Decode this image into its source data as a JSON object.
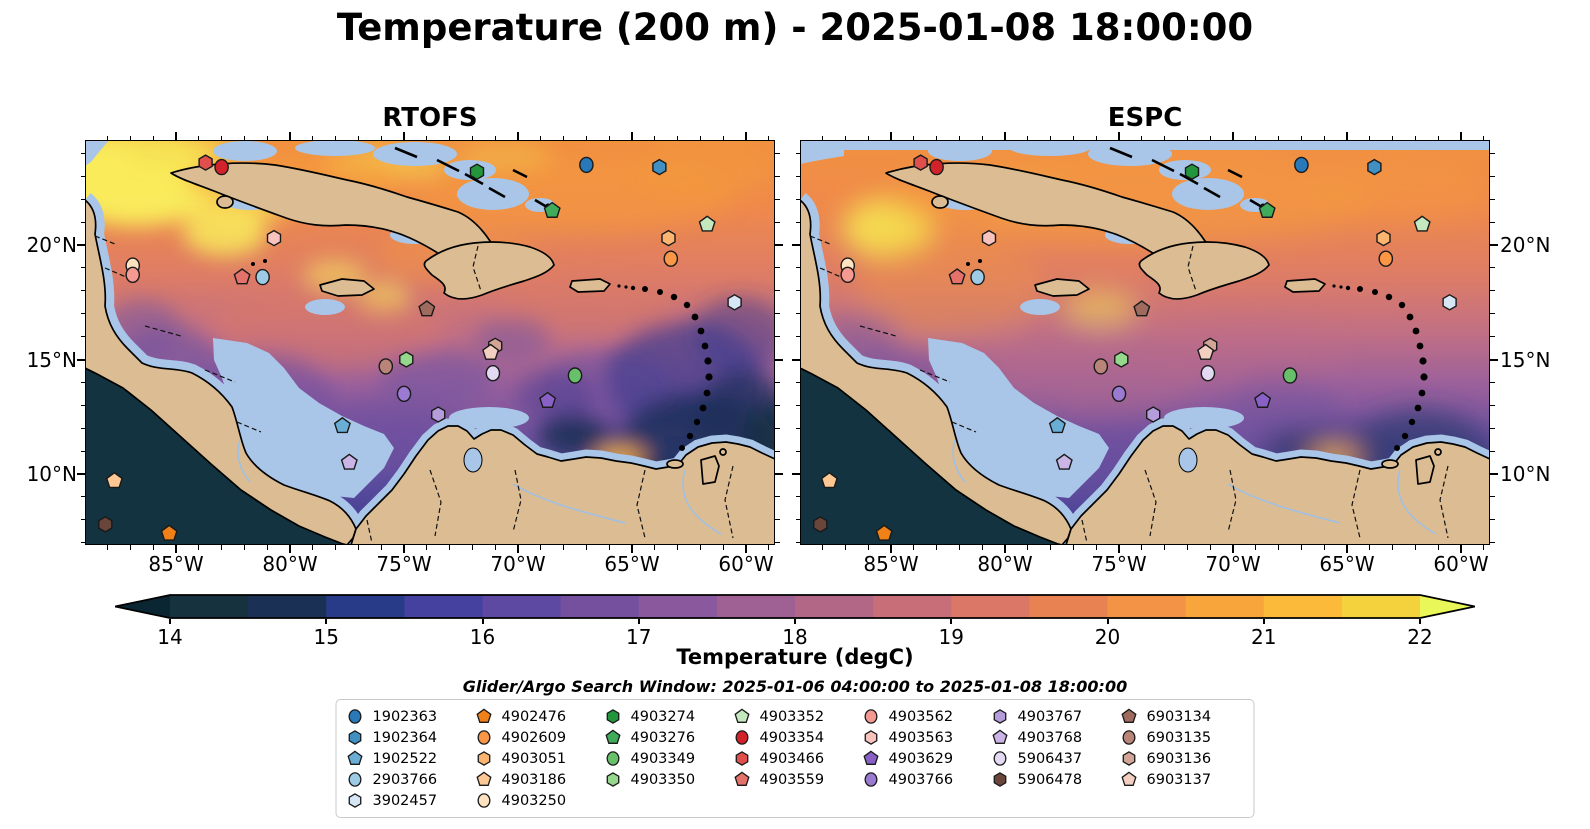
{
  "title": "Temperature (200 m) - 2025-01-08 18:00:00",
  "panels": [
    {
      "id": "rtofs",
      "title": "RTOFS",
      "lat_labels": "left"
    },
    {
      "id": "espc",
      "title": "ESPC",
      "lat_labels": "right"
    }
  ],
  "axes": {
    "lon_tick_labels": [
      "85°W",
      "80°W",
      "75°W",
      "70°W",
      "65°W",
      "60°W"
    ],
    "lat_tick_labels": [
      "20°N",
      "15°N",
      "10°N"
    ]
  },
  "colorbar": {
    "label": "Temperature (degC)",
    "tick_labels": [
      "14",
      "15",
      "16",
      "17",
      "18",
      "19",
      "20",
      "21",
      "22"
    ],
    "segment_colors": [
      "#16323f",
      "#1b3055",
      "#273b89",
      "#45419f",
      "#5d48a2",
      "#74509f",
      "#8a589c",
      "#9f6093",
      "#b36787",
      "#c76e79",
      "#da7766",
      "#e98253",
      "#f29345",
      "#f8a63c",
      "#fbba39",
      "#f4d23e"
    ],
    "under_color": "#0b2633",
    "over_color": "#e9f858"
  },
  "subtitle": "Glider/Argo Search Window: 2025-01-06 04:00:00 to 2025-01-08 18:00:00",
  "legend": {
    "columns": [
      [
        "1902363",
        "1902364",
        "1902522",
        "2903766",
        "3902457"
      ],
      [
        "4902476",
        "4902609",
        "4903051",
        "4903186",
        "4903250"
      ],
      [
        "4903274",
        "4903276",
        "4903349",
        "4903350"
      ],
      [
        "4903352",
        "4903354",
        "4903466",
        "4903559"
      ],
      [
        "4903562",
        "4903563",
        "4903629",
        "4903766"
      ],
      [
        "4903767",
        "4903768",
        "5906437",
        "5906478"
      ],
      [
        "6903134",
        "6903135",
        "6903136",
        "6903137"
      ]
    ]
  },
  "chart_data": {
    "type": "heatmap",
    "title": "Temperature (200 m) - 2025-01-08 18:00:00",
    "variable": "Temperature (degC)",
    "depth_m": 200,
    "valid_time": "2025-01-08 18:00:00",
    "models": [
      "RTOFS",
      "ESPC"
    ],
    "colorbar_range_degc": [
      14,
      22
    ],
    "colorbar_extend": "both",
    "lon_axis": {
      "ticks": [
        "85°W",
        "80°W",
        "75°W",
        "70°W",
        "65°W",
        "60°W"
      ],
      "range_deg_w": [
        88.9,
        58.7
      ]
    },
    "lat_axis": {
      "ticks": [
        "20°N",
        "15°N",
        "10°N"
      ],
      "range_deg_n": [
        6.9,
        24.6
      ]
    },
    "search_window": {
      "start": "2025-01-06 04:00:00",
      "end": "2025-01-08 18:00:00"
    },
    "platforms": [
      {
        "id": "1902363",
        "shape": "circle",
        "color": "#2979b9",
        "lon_w": 67.0,
        "lat_n": 23.5
      },
      {
        "id": "1902364",
        "shape": "hexagon",
        "color": "#4090c4",
        "lon_w": 63.8,
        "lat_n": 23.4
      },
      {
        "id": "1902522",
        "shape": "pentagon",
        "color": "#6aaed6",
        "lon_w": 77.7,
        "lat_n": 12.1
      },
      {
        "id": "2903766",
        "shape": "circle",
        "color": "#9dcbe6",
        "lon_w": 81.2,
        "lat_n": 18.6
      },
      {
        "id": "3902457",
        "shape": "hexagon",
        "color": "#d6e6f4",
        "lon_w": 60.5,
        "lat_n": 17.5
      },
      {
        "id": "4902476",
        "shape": "pentagon",
        "color": "#f08118",
        "lon_w": 85.3,
        "lat_n": 7.4
      },
      {
        "id": "4902609",
        "shape": "circle",
        "color": "#f99746",
        "lon_w": 63.3,
        "lat_n": 19.4
      },
      {
        "id": "4903051",
        "shape": "hexagon",
        "color": "#fcb571",
        "lon_w": 63.4,
        "lat_n": 20.3
      },
      {
        "id": "4903186",
        "shape": "pentagon",
        "color": "#fdc894",
        "lon_w": 87.7,
        "lat_n": 9.7
      },
      {
        "id": "4903250",
        "shape": "circle",
        "color": "#fde3c0",
        "lon_w": 86.9,
        "lat_n": 19.1
      },
      {
        "id": "4903274",
        "shape": "hexagon",
        "color": "#23953c",
        "lon_w": 71.8,
        "lat_n": 23.2
      },
      {
        "id": "4903276",
        "shape": "pentagon",
        "color": "#41ab5c",
        "lon_w": 68.5,
        "lat_n": 21.5
      },
      {
        "id": "4903349",
        "shape": "circle",
        "color": "#69c06b",
        "lon_w": 67.5,
        "lat_n": 14.3
      },
      {
        "id": "4903350",
        "shape": "hexagon",
        "color": "#95d78c",
        "lon_w": 74.9,
        "lat_n": 15.0
      },
      {
        "id": "4903352",
        "shape": "pentagon",
        "color": "#c4e9bf",
        "lon_w": 61.7,
        "lat_n": 20.9
      },
      {
        "id": "4903354",
        "shape": "circle",
        "color": "#d2232a",
        "lon_w": 83.0,
        "lat_n": 23.4
      },
      {
        "id": "4903466",
        "shape": "hexagon",
        "color": "#e14f4c",
        "lon_w": 83.7,
        "lat_n": 23.6
      },
      {
        "id": "4903559",
        "shape": "pentagon",
        "color": "#e4726a",
        "lon_w": 82.1,
        "lat_n": 18.6
      },
      {
        "id": "4903562",
        "shape": "circle",
        "color": "#f49a92",
        "lon_w": 86.9,
        "lat_n": 18.7
      },
      {
        "id": "4903563",
        "shape": "hexagon",
        "color": "#f9c3bd",
        "lon_w": 80.7,
        "lat_n": 20.3
      },
      {
        "id": "4903629",
        "shape": "pentagon",
        "color": "#8860c6",
        "lon_w": 68.7,
        "lat_n": 13.2
      },
      {
        "id": "4903766",
        "shape": "circle",
        "color": "#9a7bd1",
        "lon_w": 75.0,
        "lat_n": 13.5
      },
      {
        "id": "4903767",
        "shape": "hexagon",
        "color": "#b59ddb",
        "lon_w": 73.5,
        "lat_n": 12.6
      },
      {
        "id": "4903768",
        "shape": "pentagon",
        "color": "#cbb4e6",
        "lon_w": 77.4,
        "lat_n": 10.5
      },
      {
        "id": "5906437",
        "shape": "circle",
        "color": "#e4d9f3",
        "lon_w": 71.1,
        "lat_n": 14.4
      },
      {
        "id": "5906478",
        "shape": "hexagon",
        "color": "#6a453a",
        "lon_w": 88.1,
        "lat_n": 7.8
      },
      {
        "id": "6903134",
        "shape": "pentagon",
        "color": "#9e6b5e",
        "lon_w": 74.0,
        "lat_n": 17.2
      },
      {
        "id": "6903135",
        "shape": "circle",
        "color": "#b98579",
        "lon_w": 75.8,
        "lat_n": 14.7
      },
      {
        "id": "6903136",
        "shape": "hexagon",
        "color": "#d3a596",
        "lon_w": 71.0,
        "lat_n": 15.6
      },
      {
        "id": "6903137",
        "shape": "pentagon",
        "color": "#f3cfc2",
        "lon_w": 71.2,
        "lat_n": 15.3
      }
    ]
  }
}
